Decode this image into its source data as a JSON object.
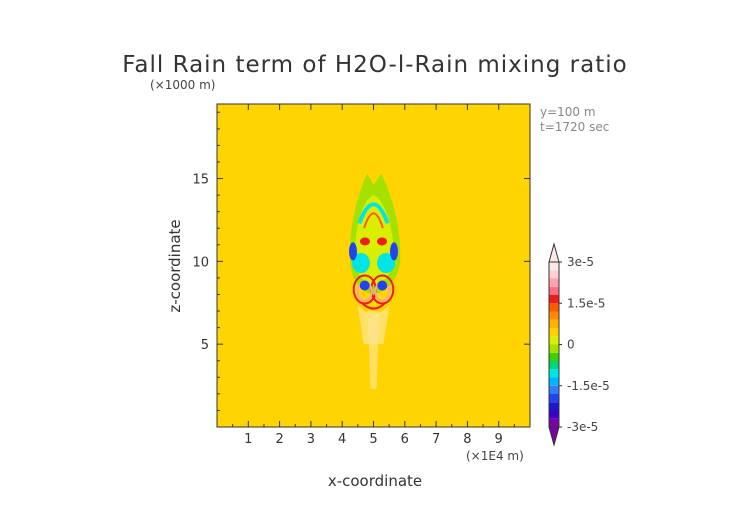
{
  "chart_data": {
    "type": "heatmap",
    "title": "Fall Rain term of H2O-l-Rain mixing ratio",
    "xlabel": "x-coordinate",
    "ylabel": "z-coordinate",
    "x_unit": "(×1E4 m)",
    "y_unit": "(×1000 m)",
    "xlim": [
      0,
      10
    ],
    "ylim": [
      0,
      19.5
    ],
    "x_ticks": [
      "1",
      "2",
      "3",
      "4",
      "5",
      "6",
      "7",
      "8",
      "9"
    ],
    "y_ticks": [
      "5",
      "10",
      "15"
    ],
    "x_tick_values": [
      1,
      2,
      3,
      4,
      5,
      6,
      7,
      8,
      9
    ],
    "y_tick_values": [
      5,
      10,
      15
    ],
    "annotations": [
      "y=100 m",
      "t=1720 sec"
    ],
    "background_color": "#ffd400",
    "colorbar": {
      "min": -3e-05,
      "max": 3e-05,
      "tick_labels": [
        "3e-5",
        "1.5e-5",
        "0",
        "-1.5e-5",
        "-3e-5"
      ],
      "tick_values": [
        3e-05,
        1.5e-05,
        0,
        -1.5e-05,
        -3e-05
      ],
      "colors": [
        "#7a00a8",
        "#3a00c8",
        "#1a1acc",
        "#2244ee",
        "#2f7cff",
        "#00b6ff",
        "#00e6e6",
        "#00d67a",
        "#3ed100",
        "#a4e000",
        "#d9ee00",
        "#ffd400",
        "#ffb200",
        "#ff8a00",
        "#ff5a00",
        "#ee1c1c",
        "#ff6e86",
        "#ffa2ae",
        "#ffcfd2",
        "#ffe8e6"
      ]
    }
  }
}
